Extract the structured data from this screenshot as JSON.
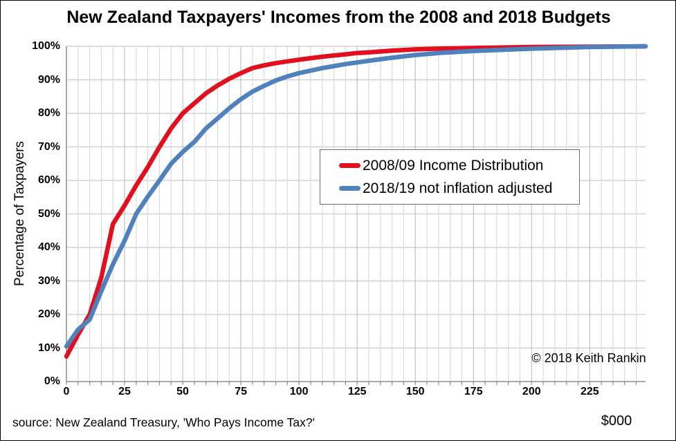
{
  "footer": {
    "source": "source: New Zealand Treasury, 'Who Pays Income Tax?'"
  },
  "annotations": {
    "copyright": "© 2018 Keith Rankin"
  },
  "colors": {
    "series_red": "#e0101e",
    "series_blue": "#4f81bd",
    "grid_horizontal": "#c9c9c9",
    "grid_minor_vertical": "#dadada",
    "grid_major_vertical": "#c2c2c2",
    "axis_line": "#8c8c8c",
    "tick_mark": "#8c8c8c",
    "text": "#000000",
    "legend_border": "#6f6f6f",
    "background": "#ffffff"
  },
  "chart_data": {
    "type": "line",
    "title": "New Zealand Taxpayers' Incomes from the 2008 and 2018 Budgets",
    "ylabel": "Percentage of Taxpayers",
    "xlabel": "$000",
    "x_unit_label": "$000",
    "xlim": [
      0,
      249
    ],
    "ylim": [
      0,
      100
    ],
    "x_major_ticks": [
      0,
      25,
      50,
      75,
      100,
      125,
      150,
      175,
      200,
      225
    ],
    "x_minor_tick_step": 5,
    "x_minor_tick_max": 245,
    "y_ticks": [
      0,
      10,
      20,
      30,
      40,
      50,
      60,
      70,
      80,
      90,
      100
    ],
    "y_tick_suffix": "%",
    "grid": true,
    "legend_position": "center-right",
    "series": [
      {
        "name": "2008/09 Income Distribution",
        "color": "#e0101e",
        "x": [
          0,
          5,
          10,
          15,
          20,
          25,
          30,
          35,
          40,
          45,
          50,
          55,
          60,
          65,
          70,
          75,
          80,
          85,
          90,
          95,
          100,
          110,
          120,
          125,
          130,
          140,
          150,
          160,
          175,
          200,
          225,
          249
        ],
        "y": [
          7.5,
          14,
          20,
          31,
          47,
          52.5,
          58.5,
          64,
          70,
          75.5,
          80,
          83,
          86,
          88.3,
          90.3,
          92,
          93.5,
          94.3,
          95,
          95.5,
          96,
          96.9,
          97.6,
          98,
          98.2,
          98.7,
          99.1,
          99.3,
          99.5,
          99.8,
          99.9,
          100
        ]
      },
      {
        "name": "2018/19 not inflation adjusted",
        "color": "#4f81bd",
        "x": [
          0,
          5,
          10,
          15,
          20,
          25,
          30,
          35,
          40,
          45,
          50,
          55,
          60,
          65,
          70,
          75,
          80,
          85,
          90,
          95,
          100,
          110,
          120,
          125,
          130,
          140,
          150,
          160,
          175,
          200,
          225,
          249
        ],
        "y": [
          10.5,
          15.5,
          18.5,
          27,
          35,
          42,
          50,
          55.2,
          60,
          65,
          68.5,
          71.5,
          75.5,
          78.5,
          81.5,
          84.2,
          86.5,
          88.2,
          89.8,
          91,
          92,
          93.5,
          94.7,
          95.2,
          95.7,
          96.6,
          97.4,
          98,
          98.6,
          99.3,
          99.8,
          100
        ]
      }
    ]
  }
}
